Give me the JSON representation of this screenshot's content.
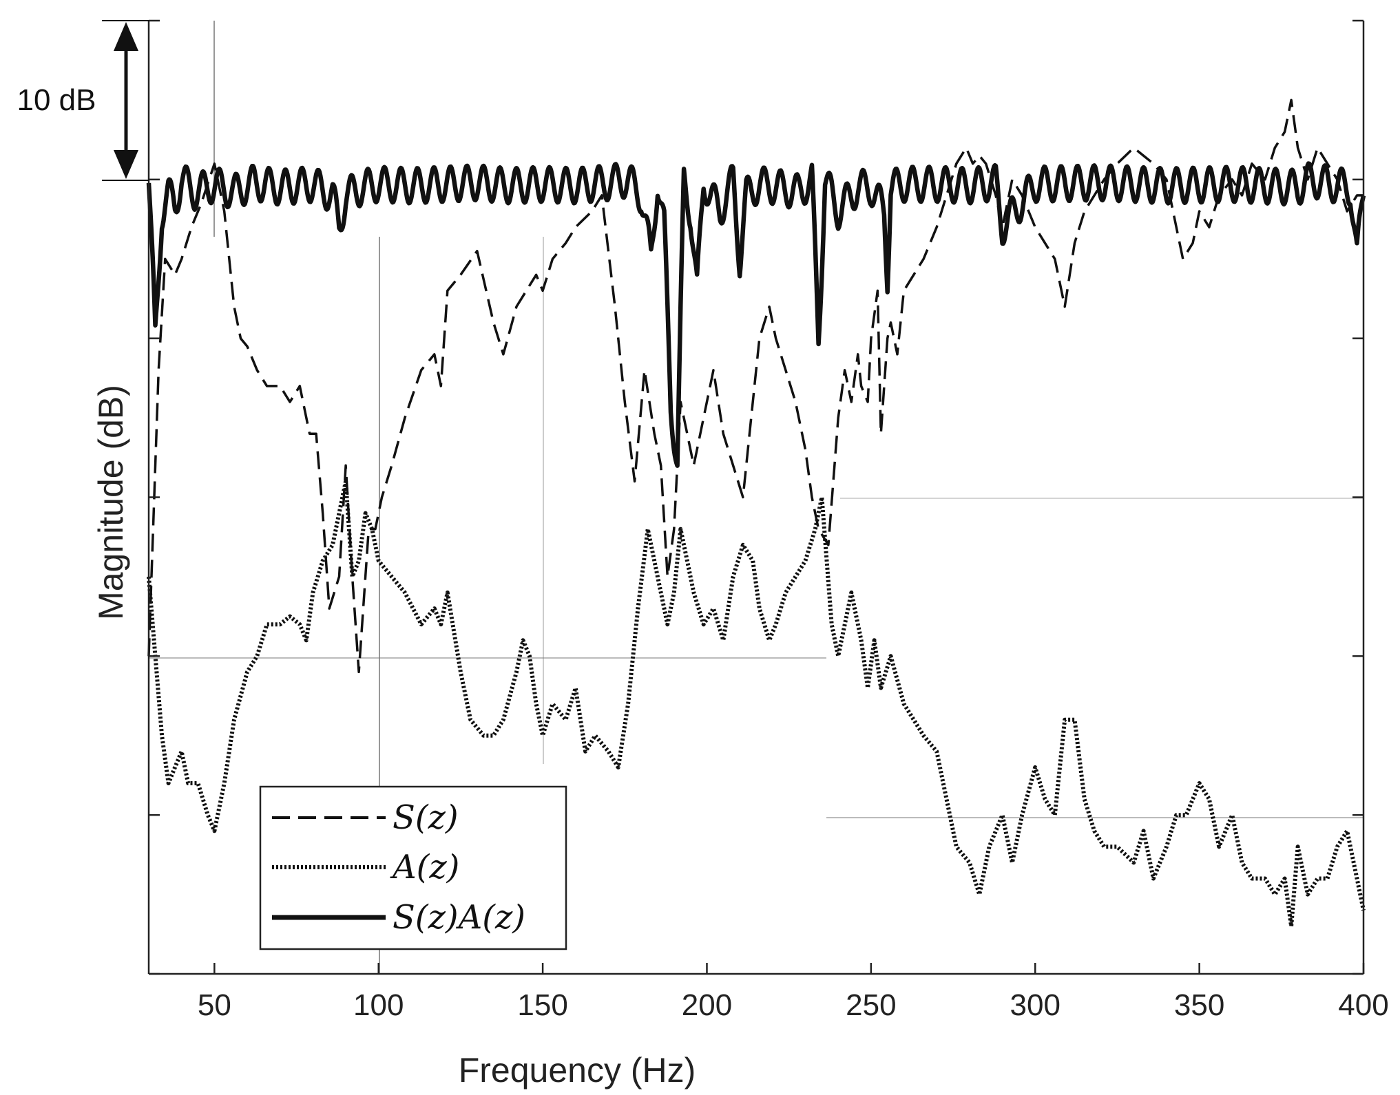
{
  "chart_data": {
    "type": "line",
    "xlabel": "Frequency (Hz)",
    "ylabel": "Magnitude (dB)",
    "xlim": [
      30,
      400
    ],
    "x_ticks": [
      50,
      100,
      150,
      200,
      250,
      300,
      350,
      400
    ],
    "ylim": [
      -50,
      10
    ],
    "y_tick_labels_shown": false,
    "grid": false,
    "legend_position": "bottom-left",
    "scale_bar": {
      "label": "10 dB",
      "value_db": 10
    },
    "series": [
      {
        "name": "S(z)",
        "style": "dashed",
        "x": [
          30,
          33,
          35,
          38,
          40,
          43,
          46,
          50,
          53,
          56,
          58,
          60,
          63,
          66,
          70,
          73,
          76,
          79,
          81,
          83,
          85,
          88,
          90,
          92,
          94,
          97,
          99,
          101,
          104,
          108,
          113,
          117,
          119,
          121,
          125,
          130,
          135,
          138,
          142,
          145,
          148,
          150,
          153,
          157,
          160,
          165,
          168,
          172,
          175,
          178,
          181,
          184,
          186,
          188,
          190,
          192,
          194,
          196,
          199,
          202,
          205,
          208,
          211,
          214,
          216,
          219,
          221,
          224,
          227,
          230,
          232,
          234,
          237,
          240,
          242,
          244,
          246,
          247,
          249,
          250,
          252,
          253,
          255,
          256,
          258,
          260,
          263,
          266,
          270,
          273,
          276,
          279,
          281,
          283,
          285,
          288,
          290,
          293,
          296,
          300,
          303,
          306,
          309,
          312,
          315,
          318,
          321,
          325,
          330,
          333,
          336,
          340,
          343,
          345,
          348,
          350,
          353,
          356,
          360,
          363,
          366,
          370,
          373,
          376,
          378,
          380,
          383,
          386,
          389,
          392,
          395,
          398,
          400
        ],
        "values": [
          -30,
          -12,
          -5,
          -6,
          -5,
          -3,
          -1.5,
          1,
          -2,
          -8,
          -10,
          -10.5,
          -12,
          -13,
          -13,
          -14,
          -13,
          -16,
          -16,
          -21,
          -27,
          -25,
          -18,
          -25,
          -31,
          -22,
          -22,
          -20,
          -18,
          -15,
          -12,
          -11,
          -13,
          -7,
          -6,
          -4.5,
          -9,
          -11,
          -8,
          -7,
          -6,
          -7,
          -5,
          -4,
          -3,
          -2,
          -1,
          -8,
          -14,
          -19,
          -12,
          -16,
          -18,
          -25,
          -22,
          -14,
          -16,
          -18,
          -15,
          -12,
          -16,
          -18,
          -20,
          -14,
          -10,
          -8,
          -10,
          -12,
          -14,
          -17,
          -20,
          -22,
          -23,
          -15,
          -12,
          -14,
          -11,
          -13,
          -14,
          -10,
          -7,
          -16,
          -10,
          -9,
          -11,
          -7,
          -6,
          -5,
          -3,
          -1,
          1,
          2,
          1,
          1.5,
          1,
          -1,
          -3,
          0,
          -1,
          -3,
          -4,
          -5,
          -8,
          -4,
          -2,
          -1,
          0,
          1,
          2,
          1.5,
          1,
          0,
          -3,
          -5,
          -4,
          -2,
          -3,
          -1,
          0,
          -1,
          1,
          0,
          2,
          3,
          5,
          2,
          0,
          2,
          1,
          0,
          -2,
          -1,
          -1
        ]
      },
      {
        "name": "A(z)",
        "style": "dotted",
        "x": [
          30,
          32,
          34,
          36,
          38,
          40,
          42,
          45,
          48,
          50,
          53,
          56,
          60,
          63,
          66,
          70,
          73,
          76,
          78,
          80,
          83,
          86,
          88,
          90,
          92,
          94,
          96,
          98,
          100,
          104,
          108,
          113,
          117,
          119,
          121,
          125,
          128,
          132,
          135,
          138,
          142,
          144,
          146,
          148,
          150,
          153,
          157,
          160,
          163,
          166,
          170,
          173,
          176,
          179,
          182,
          184,
          186,
          188,
          190,
          192,
          194,
          196,
          199,
          202,
          205,
          208,
          211,
          214,
          216,
          219,
          221,
          224,
          227,
          230,
          233,
          235,
          238,
          240,
          244,
          247,
          249,
          251,
          253,
          256,
          260,
          263,
          266,
          270,
          273,
          276,
          280,
          283,
          286,
          290,
          293,
          296,
          300,
          303,
          306,
          309,
          312,
          315,
          318,
          321,
          325,
          330,
          333,
          336,
          340,
          343,
          346,
          348,
          350,
          353,
          356,
          360,
          363,
          366,
          370,
          373,
          376,
          378,
          380,
          383,
          386,
          389,
          392,
          395,
          398,
          400
        ],
        "values": [
          -25,
          -30,
          -35,
          -38,
          -37,
          -36,
          -38,
          -38,
          -40,
          -41,
          -38,
          -34,
          -31,
          -30,
          -28,
          -28,
          -27.5,
          -28,
          -29,
          -26,
          -24,
          -23,
          -21,
          -19,
          -25,
          -24,
          -21,
          -22,
          -24,
          -25,
          -26,
          -28,
          -27,
          -28,
          -26,
          -31,
          -34,
          -35,
          -35,
          -34,
          -31,
          -29,
          -30,
          -33,
          -35,
          -33,
          -34,
          -32,
          -36,
          -35,
          -36,
          -37,
          -33,
          -27,
          -22,
          -24,
          -26,
          -28,
          -26,
          -22,
          -24,
          -26,
          -28,
          -27,
          -29,
          -25,
          -23,
          -24,
          -27,
          -29,
          -28,
          -26,
          -25,
          -24,
          -22,
          -20,
          -28,
          -30,
          -26,
          -29,
          -32,
          -29,
          -32,
          -30,
          -33,
          -34,
          -35,
          -36,
          -39,
          -42,
          -43,
          -45,
          -42,
          -40,
          -43,
          -40,
          -37,
          -39,
          -40,
          -34,
          -34,
          -39,
          -41,
          -42,
          -42,
          -43,
          -41,
          -44,
          -42,
          -40,
          -40,
          -39,
          -38,
          -39,
          -42,
          -40,
          -43,
          -44,
          -44,
          -45,
          -44,
          -47,
          -42,
          -45,
          -44,
          -44,
          -42,
          -41,
          -44,
          -46
        ]
      },
      {
        "name": "S(z)A(z)",
        "style": "solid",
        "x": [
          30,
          32,
          34,
          36,
          38,
          40,
          44,
          50,
          56,
          62,
          70,
          80,
          86,
          88,
          90,
          95,
          100,
          110,
          120,
          130,
          140,
          150,
          160,
          170,
          176,
          180,
          183,
          185,
          187,
          189,
          191,
          193,
          195,
          197,
          199,
          201,
          204,
          208,
          210,
          212,
          216,
          222,
          228,
          232,
          234,
          236,
          240,
          246,
          250,
          254,
          255,
          256,
          260,
          270,
          280,
          288,
          290,
          300,
          320,
          340,
          360,
          380,
          384,
          390,
          396,
          398,
          400
        ],
        "values": [
          0,
          -10,
          -2,
          -1,
          -1.5,
          0,
          -0.8,
          -0.3,
          -0.8,
          -0.2,
          -0.5,
          -0.3,
          -1,
          -3,
          -1,
          -0.5,
          -0.3,
          -0.4,
          -0.3,
          -0.2,
          -0.4,
          -0.3,
          -0.4,
          -0.2,
          0,
          -1,
          -5,
          0,
          -3,
          -14,
          -18,
          0,
          -2,
          -7,
          0,
          -1,
          -2,
          0,
          -5,
          -1,
          -0.3,
          -0.5,
          -0.8,
          0,
          -10,
          0,
          -2,
          -0.5,
          -0.5,
          -2,
          -6,
          -0.5,
          -0.3,
          -0.3,
          -0.4,
          -0.2,
          -3,
          -0.3,
          -0.2,
          -0.4,
          -0.3,
          -0.5,
          0,
          -0.3,
          -0.5,
          -5,
          -0.5
        ]
      }
    ]
  }
}
